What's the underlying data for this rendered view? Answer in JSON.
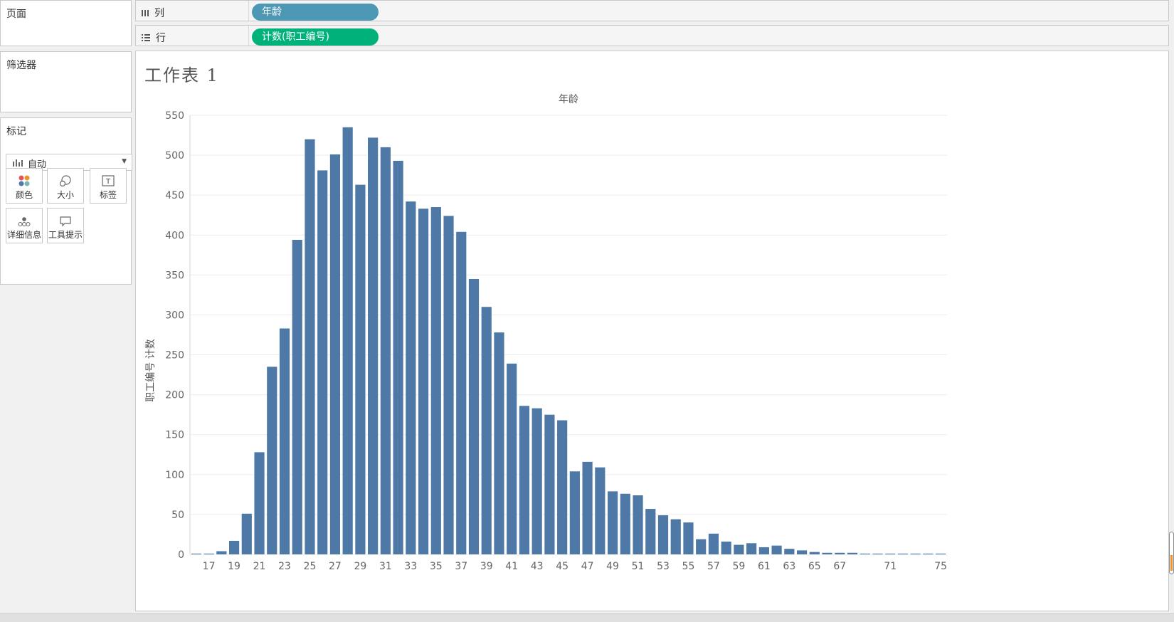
{
  "panels": {
    "pages": "页面",
    "filters": "筛选器",
    "marks": "标记",
    "mark_type": "自动",
    "buttons": {
      "color": "颜色",
      "size": "大小",
      "label": "标签",
      "detail": "详细信息",
      "tooltip": "工具提示"
    }
  },
  "shelves": {
    "columns_label": "列",
    "rows_label": "行",
    "columns_pill": "年龄",
    "rows_pill": "计数(职工编号)"
  },
  "colors": {
    "bar": "#4e79a7",
    "columns_pill": "#4c98b5",
    "rows_pill": "#00b27a"
  },
  "sheet": {
    "title": "工作表 1"
  },
  "chart_data": {
    "type": "bar",
    "title": "年龄",
    "xlabel": "",
    "ylabel": "职工编号 计数",
    "ylim": [
      0,
      550
    ],
    "yticks": [
      0,
      50,
      100,
      150,
      200,
      250,
      300,
      350,
      400,
      450,
      500,
      550
    ],
    "grid": true,
    "categories": [
      16,
      17,
      18,
      19,
      20,
      21,
      22,
      23,
      24,
      25,
      26,
      27,
      28,
      29,
      30,
      31,
      32,
      33,
      34,
      35,
      36,
      37,
      38,
      39,
      40,
      41,
      42,
      43,
      44,
      45,
      46,
      47,
      48,
      49,
      50,
      51,
      52,
      53,
      54,
      55,
      56,
      57,
      58,
      59,
      60,
      61,
      62,
      63,
      64,
      65,
      66,
      67,
      68,
      69,
      70,
      71,
      72,
      73,
      74,
      75
    ],
    "x_tick_labels": [
      "17",
      "19",
      "21",
      "23",
      "25",
      "27",
      "29",
      "31",
      "33",
      "35",
      "37",
      "39",
      "41",
      "43",
      "45",
      "47",
      "49",
      "51",
      "53",
      "55",
      "57",
      "59",
      "61",
      "63",
      "65",
      "67",
      "71",
      "75"
    ],
    "values": [
      1,
      1,
      4,
      17,
      51,
      128,
      235,
      283,
      394,
      520,
      481,
      501,
      535,
      463,
      522,
      510,
      493,
      442,
      433,
      435,
      424,
      404,
      345,
      310,
      278,
      239,
      186,
      183,
      175,
      168,
      104,
      116,
      109,
      79,
      76,
      74,
      57,
      49,
      44,
      40,
      19,
      26,
      16,
      12,
      14,
      9,
      11,
      7,
      5,
      3,
      2,
      2,
      2,
      1,
      1,
      1,
      1,
      1,
      1,
      1
    ]
  }
}
